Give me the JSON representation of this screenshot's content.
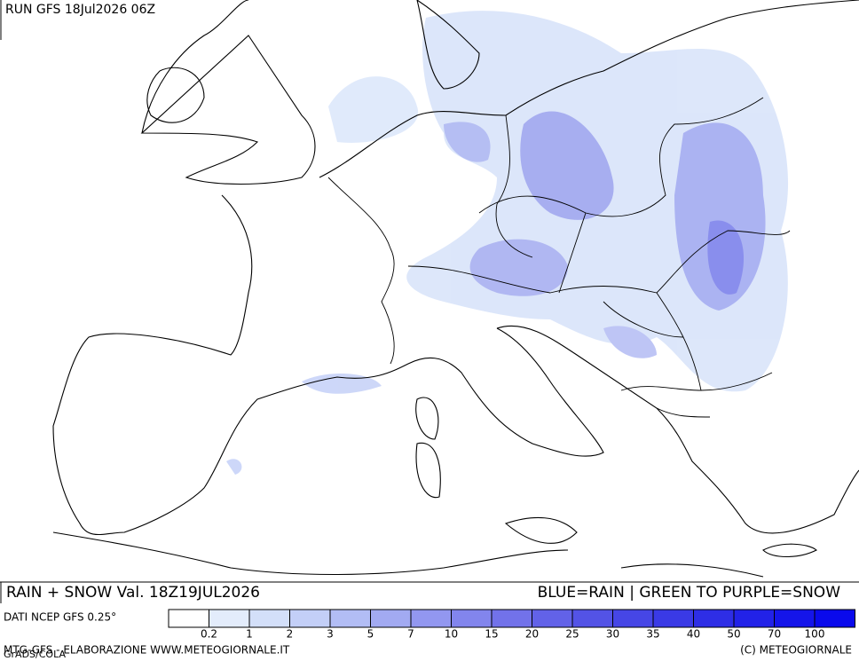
{
  "header": {
    "run": "RUN GFS 18Jul2026 06Z"
  },
  "caption": {
    "left": "RAIN + SNOW Val. 18Z19JUL2026",
    "right": "BLUE=RAIN | GREEN TO PURPLE=SNOW"
  },
  "legend": {
    "source": "DATI NCEP GFS 0.25°",
    "labels": [
      "0.2",
      "1",
      "2",
      "3",
      "5",
      "7",
      "10",
      "15",
      "20",
      "25",
      "30",
      "35",
      "40",
      "50",
      "70",
      "100"
    ],
    "colors": [
      "#ffffff",
      "#e3ecfb",
      "#d3dff9",
      "#c3cff7",
      "#b2bdf5",
      "#a2aaf2",
      "#9297f0",
      "#8285ed",
      "#7272ea",
      "#6262e8",
      "#5353e6",
      "#4646e6",
      "#3a3ae6",
      "#2e2ee6",
      "#2222e8",
      "#1515ea",
      "#0a0aec"
    ]
  },
  "footer": {
    "left": "MTG-GFS - ELABORAZIONE WWW.METEOGIORNALE.IT",
    "overlap": "GrADS/COLA",
    "right": "(C) METEOGIORNALE"
  }
}
